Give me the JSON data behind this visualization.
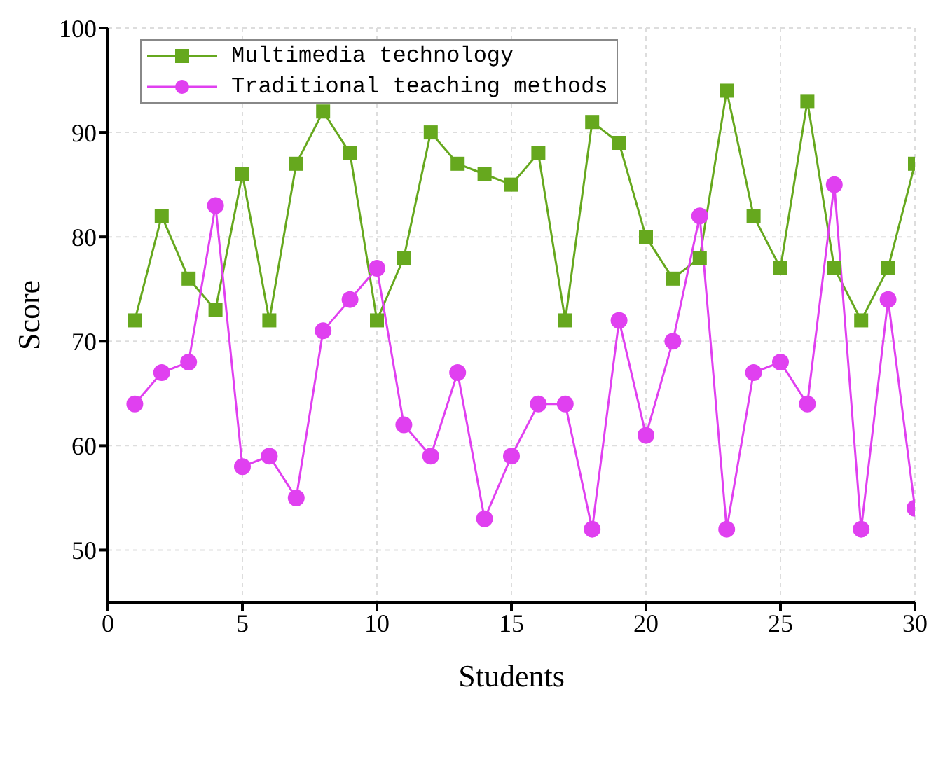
{
  "chart_data": {
    "type": "line",
    "xlabel": "Students",
    "ylabel": "Score",
    "x": [
      1,
      2,
      3,
      4,
      5,
      6,
      7,
      8,
      9,
      10,
      11,
      12,
      13,
      14,
      15,
      16,
      17,
      18,
      19,
      20,
      21,
      22,
      23,
      24,
      25,
      26,
      27,
      28,
      29,
      30
    ],
    "series": [
      {
        "name": "Multimedia technology",
        "color": "#66a81e",
        "marker": "square",
        "values": [
          72,
          82,
          76,
          73,
          86,
          72,
          87,
          92,
          88,
          72,
          78,
          90,
          87,
          86,
          85,
          88,
          72,
          91,
          89,
          80,
          76,
          78,
          94,
          82,
          77,
          93,
          77,
          72,
          77,
          87
        ]
      },
      {
        "name": "Traditional teaching methods",
        "color": "#e040f0",
        "marker": "circle",
        "values": [
          64,
          67,
          68,
          83,
          58,
          59,
          55,
          71,
          74,
          77,
          62,
          59,
          67,
          53,
          59,
          64,
          64,
          52,
          72,
          61,
          70,
          82,
          52,
          67,
          68,
          64,
          85,
          52,
          74,
          54
        ]
      }
    ],
    "xlim": [
      0,
      30
    ],
    "xticks": [
      0,
      5,
      10,
      15,
      20,
      25,
      30
    ],
    "ylim": [
      45,
      100
    ],
    "yticks": [
      50,
      60,
      70,
      80,
      90,
      100
    ],
    "grid": true,
    "legend": "top left",
    "line_style": "solid"
  }
}
